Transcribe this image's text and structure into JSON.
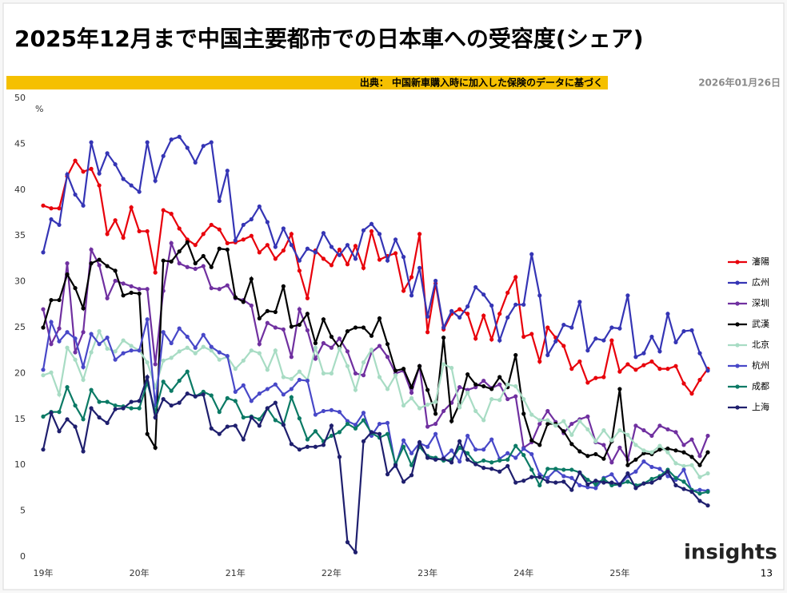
{
  "chart_data": {
    "type": "line",
    "title": "2025年12月まで中国主要都市での日本車への受容度(シェア)",
    "source": "出典： 中国新車購入時に加入した保険のデータに基づく",
    "date": "2026年01月26日",
    "y_unit": "%",
    "brand": "insights",
    "page_number": "13",
    "ylim": [
      0,
      50
    ],
    "yticks": [
      0,
      5,
      10,
      15,
      20,
      25,
      30,
      35,
      40,
      45,
      50
    ],
    "categories": [
      "19年",
      null,
      null,
      null,
      null,
      null,
      null,
      null,
      null,
      null,
      null,
      null,
      "20年",
      null,
      null,
      null,
      null,
      null,
      null,
      null,
      null,
      null,
      null,
      null,
      "21年",
      null,
      null,
      null,
      null,
      null,
      null,
      null,
      null,
      null,
      null,
      null,
      "22年",
      null,
      null,
      null,
      null,
      null,
      null,
      null,
      null,
      null,
      null,
      null,
      "23年",
      null,
      null,
      null,
      null,
      null,
      null,
      null,
      null,
      null,
      null,
      null,
      "24年",
      null,
      null,
      null,
      null,
      null,
      null,
      null,
      null,
      null,
      null,
      null,
      "25年",
      null,
      null,
      null,
      null,
      null,
      null,
      null,
      null,
      null,
      null,
      null
    ],
    "series": [
      {
        "name": "瀋陽",
        "color": "#e8000b",
        "values": [
          38.3,
          38,
          38,
          41.5,
          43.2,
          42,
          42.3,
          40.5,
          35.2,
          36.7,
          34.8,
          38.1,
          35.5,
          35.5,
          31,
          37.8,
          37.4,
          35.8,
          34.6,
          34,
          35.2,
          36.2,
          35.7,
          34.2,
          34.3,
          34.6,
          35,
          33.2,
          34,
          32.5,
          33.4,
          35.2,
          31.2,
          28.2,
          33.4,
          32.5,
          31.8,
          33.5,
          31.9,
          33.9,
          31.5,
          35.5,
          32.4,
          32.8,
          33.1,
          29,
          30.5,
          35.2,
          24.5,
          29.8,
          24.8,
          26.5,
          27,
          26.5,
          23.8,
          26.3,
          23.7,
          26.5,
          28.8,
          30.5,
          24,
          24.3,
          21.3,
          25,
          23.9,
          23,
          20.5,
          21.3,
          19,
          19.5,
          19.6,
          23.6,
          20.2,
          21,
          20.4,
          20.9,
          21.3,
          20.5,
          20.5,
          20.8,
          18.9,
          17.8,
          19.3,
          20.5
        ]
      },
      {
        "name": "広州",
        "color": "#3535b5",
        "values": [
          33.2,
          36.8,
          36.2,
          41.7,
          39.5,
          38.3,
          45.2,
          41.8,
          44,
          42.8,
          41.2,
          40.5,
          39.8,
          45.2,
          41,
          43.7,
          45.5,
          45.8,
          44.6,
          43,
          44.8,
          45.2,
          38.8,
          42.1,
          34.5,
          36.2,
          36.8,
          38.2,
          36.5,
          33.8,
          35.8,
          34,
          32.3,
          33.6,
          33.2,
          35.3,
          33.8,
          32.9,
          34,
          32.5,
          35.6,
          36.3,
          35.2,
          32.3,
          34.6,
          32.7,
          28.5,
          31.5,
          26.2,
          30.1,
          25,
          26.8,
          26.1,
          27.3,
          29.4,
          28.6,
          27.4,
          23.6,
          26.1,
          27.5,
          27.5,
          33,
          28.5,
          22,
          23.5,
          25.3,
          25,
          27.8,
          22.5,
          23.8,
          23.6,
          25,
          24.9,
          28.5,
          21.8,
          22.2,
          24,
          22.4,
          26.5,
          23.4,
          24.6,
          24.7,
          22.2,
          20.3
        ]
      },
      {
        "name": "深圳",
        "color": "#7030a0",
        "values": [
          27,
          23.2,
          24.9,
          32,
          22.3,
          24.5,
          33.5,
          31.8,
          28.2,
          30.1,
          29.8,
          29.5,
          29.2,
          29.2,
          21,
          29,
          34.2,
          32,
          31.6,
          31.4,
          31.7,
          29.3,
          29.2,
          29.6,
          28.2,
          28,
          27.4,
          23.2,
          25.5,
          25,
          24.8,
          21.8,
          27,
          24.7,
          21.6,
          23.3,
          22.8,
          23.8,
          22.4,
          20,
          19.8,
          22.3,
          23,
          21.8,
          20,
          20.3,
          17.9,
          20.8,
          14.2,
          14.5,
          15.9,
          16.8,
          18.5,
          18.2,
          18.5,
          19.2,
          18.4,
          18.8,
          17.2,
          17.5,
          11.9,
          12.5,
          14.5,
          15.9,
          14.7,
          13.5,
          14.5,
          15,
          15.3,
          12.5,
          12.2,
          10.3,
          11.9,
          10.6,
          14.3,
          13.8,
          13.2,
          14.3,
          13.9,
          13.6,
          12.2,
          12.8,
          11,
          13.2
        ]
      },
      {
        "name": "武漢",
        "color": "#000000",
        "values": [
          25,
          28,
          28,
          30.8,
          29.3,
          27.1,
          32,
          32.4,
          31.7,
          31.2,
          28.5,
          28.8,
          28.7,
          13.4,
          11.9,
          32.3,
          32.2,
          33.3,
          34.3,
          32,
          32.8,
          31.6,
          33.6,
          33.5,
          28.3,
          27.8,
          30.3,
          26,
          26.8,
          26.7,
          29.5,
          25.1,
          25.3,
          26.5,
          23.3,
          25.9,
          24,
          22.8,
          24.6,
          25,
          25,
          24.1,
          26,
          23.2,
          20.3,
          20.5,
          18.5,
          20.8,
          18.2,
          15.6,
          23.9,
          14.8,
          16.7,
          19.9,
          18.8,
          18.6,
          18.3,
          19.6,
          18.5,
          22,
          15.6,
          12.7,
          12.2,
          14.5,
          14.5,
          13.7,
          12.3,
          11.5,
          11,
          11.2,
          10.7,
          12.6,
          18.3,
          10,
          10.6,
          11.3,
          11.2,
          11.7,
          11.8,
          11.6,
          11.4,
          10.9,
          10,
          11.4
        ]
      },
      {
        "name": "北京",
        "color": "#a8dcc4",
        "values": [
          19.8,
          20.1,
          17.7,
          22.8,
          21.5,
          19.3,
          22.3,
          24.6,
          22.7,
          22.4,
          23.6,
          23,
          22.5,
          21.2,
          18.5,
          21.4,
          21.7,
          22.4,
          22.8,
          22.2,
          22.9,
          22.5,
          21.5,
          21.8,
          20.5,
          21.4,
          22.5,
          22.2,
          20.4,
          22.5,
          19.6,
          19.4,
          20.2,
          19.3,
          22.8,
          20,
          20,
          22.7,
          20.8,
          18.2,
          21.2,
          22.6,
          19.6,
          18.3,
          19.8,
          16.5,
          17.3,
          16.2,
          16.6,
          16.9,
          21,
          20.6,
          16.3,
          17.9,
          15.9,
          14.9,
          17.2,
          17.1,
          18.8,
          18.6,
          17.2,
          15.5,
          14.9,
          14.9,
          14.3,
          14.8,
          13.3,
          14.8,
          13.9,
          12.6,
          13.8,
          12.7,
          13.8,
          13.3,
          12.2,
          11.6,
          11.4,
          12.1,
          11.4,
          10.2,
          9.9,
          10,
          8.7,
          9.1
        ]
      },
      {
        "name": "杭州",
        "color": "#4848c8",
        "values": [
          20.4,
          25.6,
          23.5,
          24.5,
          23.8,
          20.7,
          24.3,
          23.2,
          23.9,
          21.5,
          22.2,
          22.5,
          22.5,
          25.9,
          16.5,
          24.5,
          23.3,
          24.9,
          24,
          22.8,
          24.2,
          22.9,
          22.3,
          21.9,
          18,
          18.7,
          17,
          17.8,
          18.3,
          18.8,
          17.7,
          18.3,
          19.3,
          19.2,
          15.5,
          15.9,
          16,
          15.8,
          14.8,
          14.4,
          15.7,
          13.2,
          14.5,
          14.6,
          9.9,
          12.7,
          11.3,
          12.4,
          12,
          13.4,
          10.8,
          11.6,
          10.4,
          13.2,
          11.7,
          11.7,
          12.8,
          10.7,
          11.3,
          10.8,
          11.8,
          11.2,
          9,
          8.6,
          9.5,
          8.8,
          8.6,
          7.8,
          7.6,
          7.5,
          8.6,
          9,
          7.8,
          8.8,
          9.3,
          10.4,
          9.8,
          9.6,
          8.8,
          8.4,
          9.5,
          7.2,
          7.3,
          7.2
        ]
      },
      {
        "name": "成都",
        "color": "#0b7a65",
        "values": [
          15.3,
          15.8,
          15.8,
          18.5,
          16.5,
          15,
          18.2,
          16.9,
          16.9,
          16.5,
          16.4,
          16.2,
          16.2,
          19,
          15.8,
          19.1,
          18.1,
          19.2,
          20.2,
          17.5,
          18,
          17.6,
          15.8,
          17.3,
          17,
          15.2,
          15.3,
          15,
          16.2,
          14.9,
          14.4,
          17.4,
          15.1,
          12.8,
          13.7,
          12.6,
          13.2,
          13.6,
          14.5,
          14,
          14.9,
          13.5,
          13,
          13.4,
          10.1,
          12,
          10,
          12,
          11,
          10.8,
          10.5,
          10.6,
          11.9,
          11.3,
          10.2,
          10.5,
          10.3,
          10.5,
          10.6,
          12.1,
          11.1,
          9.5,
          7.8,
          9.6,
          9.6,
          9.5,
          9.5,
          9.2,
          8.4,
          7.9,
          8.5,
          7.8,
          7.9,
          8.2,
          7.8,
          8,
          8.5,
          8.8,
          9.5,
          8.6,
          8.2,
          7.3,
          6.9,
          7.1
        ]
      },
      {
        "name": "上海",
        "color": "#1f1f6e",
        "values": [
          11.7,
          15.7,
          13.7,
          15,
          14.2,
          11.5,
          16.2,
          15.2,
          14.6,
          16.1,
          16.2,
          16.9,
          17,
          19.6,
          15.2,
          17.2,
          16.5,
          16.8,
          17.8,
          17.5,
          17.7,
          14,
          13.4,
          14.2,
          14.3,
          12.8,
          15.2,
          14.3,
          16.2,
          16.8,
          14.4,
          12.3,
          11.7,
          12,
          12,
          12.2,
          14.3,
          10.9,
          1.6,
          0.5,
          12.6,
          13.6,
          13.4,
          9,
          10,
          8.2,
          8.9,
          12.5,
          10.8,
          10.6,
          10.7,
          10.3,
          12.6,
          10.6,
          10.1,
          9.7,
          9.6,
          9.3,
          9.9,
          8.1,
          8.3,
          8.7,
          8.7,
          8.2,
          8.1,
          8.2,
          7.3,
          9.2,
          7.9,
          8.3,
          8.1,
          8.1,
          7.9,
          9.1,
          7.5,
          8,
          8.1,
          8.6,
          9.3,
          7.8,
          7.4,
          7.1,
          6.1,
          5.6
        ]
      }
    ]
  }
}
